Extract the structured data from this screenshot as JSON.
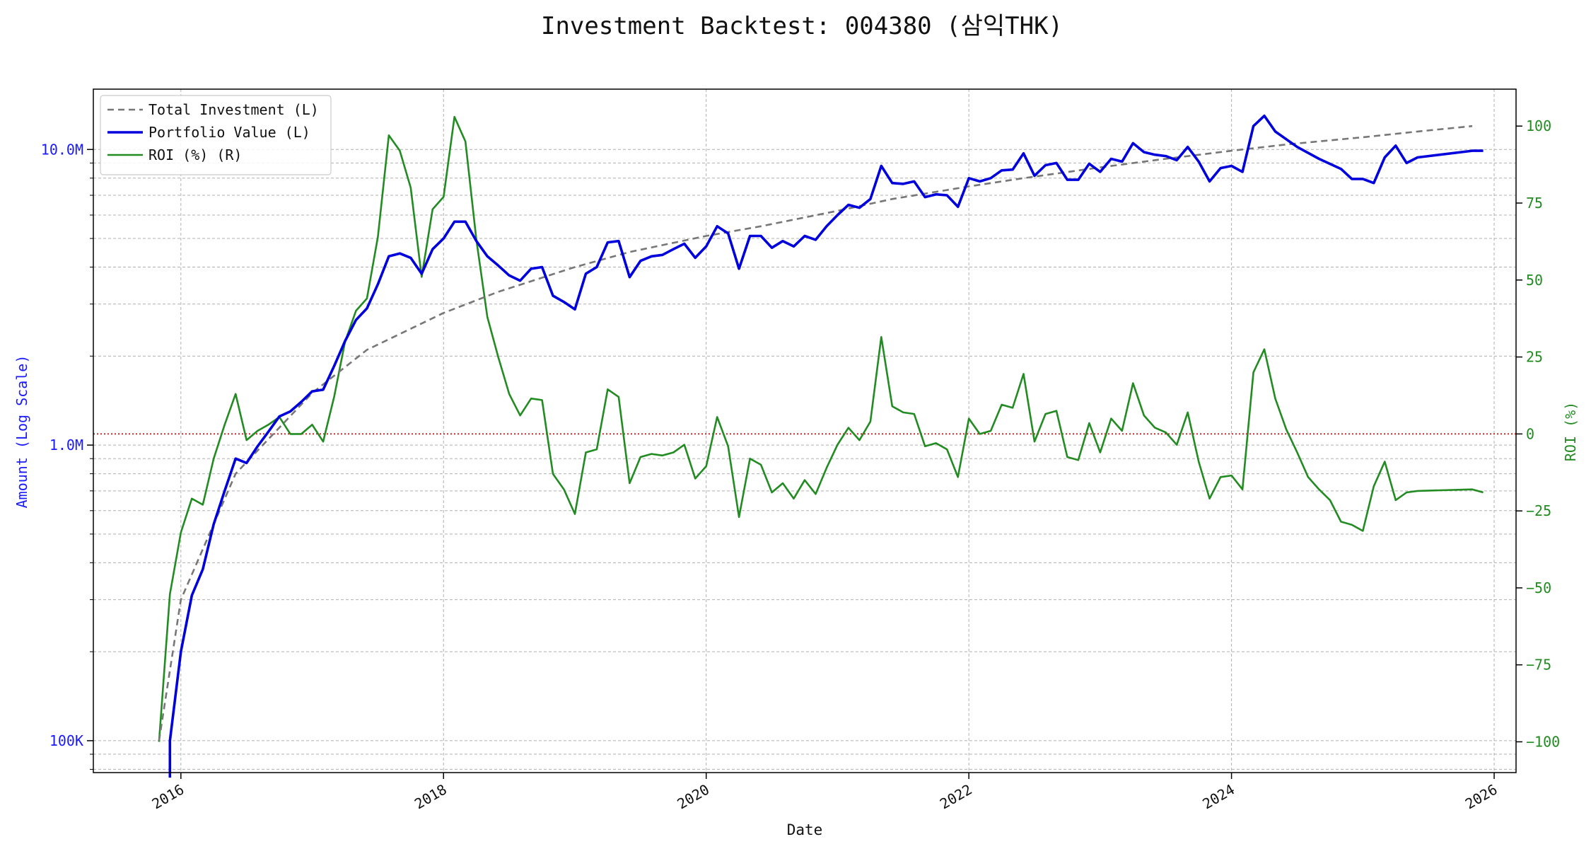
{
  "chart_data": {
    "type": "line",
    "title": "Investment Backtest: 004380 (삼익THK)",
    "xlabel": "Date",
    "ylabel_left": "Amount (Log Scale)",
    "ylabel_right": "ROI (%)",
    "x_ticks": [
      "2016",
      "2018",
      "2020",
      "2022",
      "2024",
      "2026"
    ],
    "xlim": [
      "2015-05",
      "2026-03"
    ],
    "left_axis": {
      "scale": "log",
      "ylim": [
        78000,
        16000000
      ],
      "tick_values": [
        100000,
        1000000,
        10000000
      ],
      "tick_labels": [
        "100K",
        "1.0M",
        "10.0M"
      ]
    },
    "right_axis": {
      "scale": "linear",
      "ylim": [
        -110,
        112
      ],
      "tick_values": [
        -100,
        -75,
        -50,
        -25,
        0,
        25,
        50,
        75,
        100
      ],
      "tick_labels": [
        "−100",
        "−75",
        "−50",
        "−25",
        "0",
        "25",
        "50",
        "75",
        "100"
      ]
    },
    "grid": true,
    "legend_position": "top-left",
    "reference_line": {
      "axis": "right",
      "value": 0,
      "color": "#cc0000",
      "style": "dotted"
    },
    "series": [
      {
        "name": "Total Investment (L)",
        "axis": "left",
        "color": "#777777",
        "style": "dashed",
        "points": [
          [
            "2015-11",
            100000
          ],
          [
            "2016-01",
            300000
          ],
          [
            "2016-06",
            800000
          ],
          [
            "2017-01",
            1500000
          ],
          [
            "2017-06",
            2100000
          ],
          [
            "2018-01",
            2800000
          ],
          [
            "2018-06",
            3300000
          ],
          [
            "2019-01",
            4000000
          ],
          [
            "2019-06",
            4500000
          ],
          [
            "2020-01",
            5100000
          ],
          [
            "2020-06",
            5500000
          ],
          [
            "2021-01",
            6200000
          ],
          [
            "2021-06",
            6800000
          ],
          [
            "2022-01",
            7500000
          ],
          [
            "2022-06",
            8000000
          ],
          [
            "2023-01",
            8700000
          ],
          [
            "2023-06",
            9200000
          ],
          [
            "2024-01",
            9900000
          ],
          [
            "2024-06",
            10400000
          ],
          [
            "2025-01",
            11000000
          ],
          [
            "2025-06",
            11500000
          ],
          [
            "2025-11",
            12000000
          ]
        ]
      },
      {
        "name": "Portfolio Value (L)",
        "axis": "left",
        "color": "#0000dd",
        "style": "solid",
        "points": [
          [
            "2015-12",
            75000
          ],
          [
            "2015-12",
            100000
          ],
          [
            "2016-01",
            200000
          ],
          [
            "2016-02",
            310000
          ],
          [
            "2016-03",
            380000
          ],
          [
            "2016-04",
            540000
          ],
          [
            "2016-05",
            700000
          ],
          [
            "2016-06",
            900000
          ],
          [
            "2016-07",
            870000
          ],
          [
            "2016-08",
            990000
          ],
          [
            "2016-09",
            1110000
          ],
          [
            "2016-10",
            1250000
          ],
          [
            "2016-11",
            1300000
          ],
          [
            "2016-12",
            1400000
          ],
          [
            "2017-01",
            1520000
          ],
          [
            "2017-02",
            1540000
          ],
          [
            "2017-03",
            1850000
          ],
          [
            "2017-04",
            2250000
          ],
          [
            "2017-05",
            2650000
          ],
          [
            "2017-06",
            2900000
          ],
          [
            "2017-07",
            3500000
          ],
          [
            "2017-08",
            4350000
          ],
          [
            "2017-09",
            4450000
          ],
          [
            "2017-10",
            4300000
          ],
          [
            "2017-11",
            3800000
          ],
          [
            "2017-12",
            4600000
          ],
          [
            "2018-01",
            5000000
          ],
          [
            "2018-02",
            5700000
          ],
          [
            "2018-03",
            5700000
          ],
          [
            "2018-04",
            4900000
          ],
          [
            "2018-05",
            4350000
          ],
          [
            "2018-06",
            4050000
          ],
          [
            "2018-07",
            3750000
          ],
          [
            "2018-08",
            3600000
          ],
          [
            "2018-09",
            3950000
          ],
          [
            "2018-10",
            4000000
          ],
          [
            "2018-11",
            3200000
          ],
          [
            "2018-12",
            3050000
          ],
          [
            "2019-01",
            2880000
          ],
          [
            "2019-02",
            3800000
          ],
          [
            "2019-03",
            4000000
          ],
          [
            "2019-04",
            4850000
          ],
          [
            "2019-05",
            4900000
          ],
          [
            "2019-06",
            3700000
          ],
          [
            "2019-07",
            4200000
          ],
          [
            "2019-08",
            4350000
          ],
          [
            "2019-09",
            4400000
          ],
          [
            "2019-10",
            4600000
          ],
          [
            "2019-11",
            4800000
          ],
          [
            "2019-12",
            4300000
          ],
          [
            "2020-01",
            4700000
          ],
          [
            "2020-02",
            5500000
          ],
          [
            "2020-03",
            5200000
          ],
          [
            "2020-04",
            3950000
          ],
          [
            "2020-05",
            5100000
          ],
          [
            "2020-06",
            5100000
          ],
          [
            "2020-07",
            4650000
          ],
          [
            "2020-08",
            4900000
          ],
          [
            "2020-09",
            4700000
          ],
          [
            "2020-10",
            5100000
          ],
          [
            "2020-11",
            4950000
          ],
          [
            "2020-12",
            5500000
          ],
          [
            "2021-01",
            6000000
          ],
          [
            "2021-02",
            6500000
          ],
          [
            "2021-03",
            6350000
          ],
          [
            "2021-04",
            6800000
          ],
          [
            "2021-05",
            8800000
          ],
          [
            "2021-06",
            7700000
          ],
          [
            "2021-07",
            7650000
          ],
          [
            "2021-08",
            7800000
          ],
          [
            "2021-09",
            6900000
          ],
          [
            "2021-10",
            7050000
          ],
          [
            "2021-11",
            7000000
          ],
          [
            "2021-12",
            6400000
          ],
          [
            "2022-01",
            8000000
          ],
          [
            "2022-02",
            7800000
          ],
          [
            "2022-03",
            8000000
          ],
          [
            "2022-04",
            8500000
          ],
          [
            "2022-05",
            8550000
          ],
          [
            "2022-06",
            9700000
          ],
          [
            "2022-07",
            8150000
          ],
          [
            "2022-08",
            8850000
          ],
          [
            "2022-09",
            9000000
          ],
          [
            "2022-10",
            7900000
          ],
          [
            "2022-11",
            7900000
          ],
          [
            "2022-12",
            8950000
          ],
          [
            "2023-01",
            8400000
          ],
          [
            "2023-02",
            9300000
          ],
          [
            "2023-03",
            9100000
          ],
          [
            "2023-04",
            10500000
          ],
          [
            "2023-05",
            9800000
          ],
          [
            "2023-06",
            9600000
          ],
          [
            "2023-07",
            9500000
          ],
          [
            "2023-08",
            9200000
          ],
          [
            "2023-09",
            10200000
          ],
          [
            "2023-10",
            9100000
          ],
          [
            "2023-11",
            7800000
          ],
          [
            "2023-12",
            8650000
          ],
          [
            "2024-01",
            8800000
          ],
          [
            "2024-02",
            8400000
          ],
          [
            "2024-03",
            12000000
          ],
          [
            "2024-04",
            13000000
          ],
          [
            "2024-05",
            11500000
          ],
          [
            "2024-07",
            10200000
          ],
          [
            "2024-09",
            9300000
          ],
          [
            "2024-11",
            8600000
          ],
          [
            "2024-12",
            7950000
          ],
          [
            "2025-01",
            7950000
          ],
          [
            "2025-02",
            7700000
          ],
          [
            "2025-03",
            9400000
          ],
          [
            "2025-04",
            10300000
          ],
          [
            "2025-05",
            9000000
          ],
          [
            "2025-06",
            9400000
          ],
          [
            "2025-11",
            9900000
          ],
          [
            "2025-12",
            9900000
          ]
        ]
      },
      {
        "name": "ROI (%) (R)",
        "axis": "right",
        "color": "#228b22",
        "style": "solid",
        "points": [
          [
            "2015-11",
            -100
          ],
          [
            "2015-12",
            -52
          ],
          [
            "2016-01",
            -32
          ],
          [
            "2016-02",
            -21
          ],
          [
            "2016-03",
            -23
          ],
          [
            "2016-04",
            -8
          ],
          [
            "2016-05",
            3
          ],
          [
            "2016-06",
            13
          ],
          [
            "2016-07",
            -2
          ],
          [
            "2016-08",
            1
          ],
          [
            "2016-09",
            3
          ],
          [
            "2016-10",
            5.5
          ],
          [
            "2016-11",
            0
          ],
          [
            "2016-12",
            0
          ],
          [
            "2017-01",
            3
          ],
          [
            "2017-02",
            -2.5
          ],
          [
            "2017-03",
            12
          ],
          [
            "2017-04",
            30
          ],
          [
            "2017-05",
            40
          ],
          [
            "2017-06",
            44
          ],
          [
            "2017-07",
            64
          ],
          [
            "2017-08",
            97
          ],
          [
            "2017-09",
            92
          ],
          [
            "2017-10",
            80
          ],
          [
            "2017-11",
            51
          ],
          [
            "2017-12",
            73
          ],
          [
            "2018-01",
            77
          ],
          [
            "2018-02",
            103
          ],
          [
            "2018-03",
            95
          ],
          [
            "2018-04",
            63
          ],
          [
            "2018-05",
            38
          ],
          [
            "2018-06",
            25
          ],
          [
            "2018-07",
            13
          ],
          [
            "2018-08",
            6
          ],
          [
            "2018-09",
            11.5
          ],
          [
            "2018-10",
            11
          ],
          [
            "2018-11",
            -13
          ],
          [
            "2018-12",
            -18
          ],
          [
            "2019-01",
            -26
          ],
          [
            "2019-02",
            -6
          ],
          [
            "2019-03",
            -5
          ],
          [
            "2019-04",
            14.5
          ],
          [
            "2019-05",
            12
          ],
          [
            "2019-06",
            -16
          ],
          [
            "2019-07",
            -7.5
          ],
          [
            "2019-08",
            -6.5
          ],
          [
            "2019-09",
            -7
          ],
          [
            "2019-10",
            -6
          ],
          [
            "2019-11",
            -3.5
          ],
          [
            "2019-12",
            -14.5
          ],
          [
            "2020-01",
            -10.5
          ],
          [
            "2020-02",
            5.5
          ],
          [
            "2020-03",
            -4
          ],
          [
            "2020-04",
            -27
          ],
          [
            "2020-05",
            -8
          ],
          [
            "2020-06",
            -10
          ],
          [
            "2020-07",
            -19
          ],
          [
            "2020-08",
            -16
          ],
          [
            "2020-09",
            -21
          ],
          [
            "2020-10",
            -15
          ],
          [
            "2020-11",
            -19.5
          ],
          [
            "2020-12",
            -11
          ],
          [
            "2021-01",
            -3.5
          ],
          [
            "2021-02",
            2
          ],
          [
            "2021-03",
            -2
          ],
          [
            "2021-04",
            4
          ],
          [
            "2021-05",
            31.5
          ],
          [
            "2021-06",
            9
          ],
          [
            "2021-07",
            7
          ],
          [
            "2021-08",
            6.5
          ],
          [
            "2021-09",
            -4
          ],
          [
            "2021-10",
            -3
          ],
          [
            "2021-11",
            -5
          ],
          [
            "2021-12",
            -14
          ],
          [
            "2022-01",
            5
          ],
          [
            "2022-02",
            0
          ],
          [
            "2022-03",
            1
          ],
          [
            "2022-04",
            9.5
          ],
          [
            "2022-05",
            8.5
          ],
          [
            "2022-06",
            19.5
          ],
          [
            "2022-07",
            -2.5
          ],
          [
            "2022-08",
            6.5
          ],
          [
            "2022-09",
            7.5
          ],
          [
            "2022-10",
            -7.5
          ],
          [
            "2022-11",
            -8.5
          ],
          [
            "2022-12",
            3.5
          ],
          [
            "2023-01",
            -6
          ],
          [
            "2023-02",
            5
          ],
          [
            "2023-03",
            1
          ],
          [
            "2023-04",
            16.5
          ],
          [
            "2023-05",
            6
          ],
          [
            "2023-06",
            2
          ],
          [
            "2023-07",
            0.5
          ],
          [
            "2023-08",
            -3.5
          ],
          [
            "2023-09",
            7
          ],
          [
            "2023-10",
            -9
          ],
          [
            "2023-11",
            -21
          ],
          [
            "2023-12",
            -14
          ],
          [
            "2024-01",
            -13.5
          ],
          [
            "2024-02",
            -18
          ],
          [
            "2024-03",
            20
          ],
          [
            "2024-04",
            27.5
          ],
          [
            "2024-05",
            11.5
          ],
          [
            "2024-06",
            1.5
          ],
          [
            "2024-07",
            -6
          ],
          [
            "2024-08",
            -14
          ],
          [
            "2024-09",
            -18
          ],
          [
            "2024-10",
            -21.5
          ],
          [
            "2024-11",
            -28.5
          ],
          [
            "2024-12",
            -29.5
          ],
          [
            "2025-01",
            -31.5
          ],
          [
            "2025-02",
            -17
          ],
          [
            "2025-03",
            -9
          ],
          [
            "2025-04",
            -21.5
          ],
          [
            "2025-05",
            -19
          ],
          [
            "2025-06",
            -18.5
          ],
          [
            "2025-11",
            -18
          ],
          [
            "2025-12",
            -19
          ]
        ]
      }
    ]
  }
}
